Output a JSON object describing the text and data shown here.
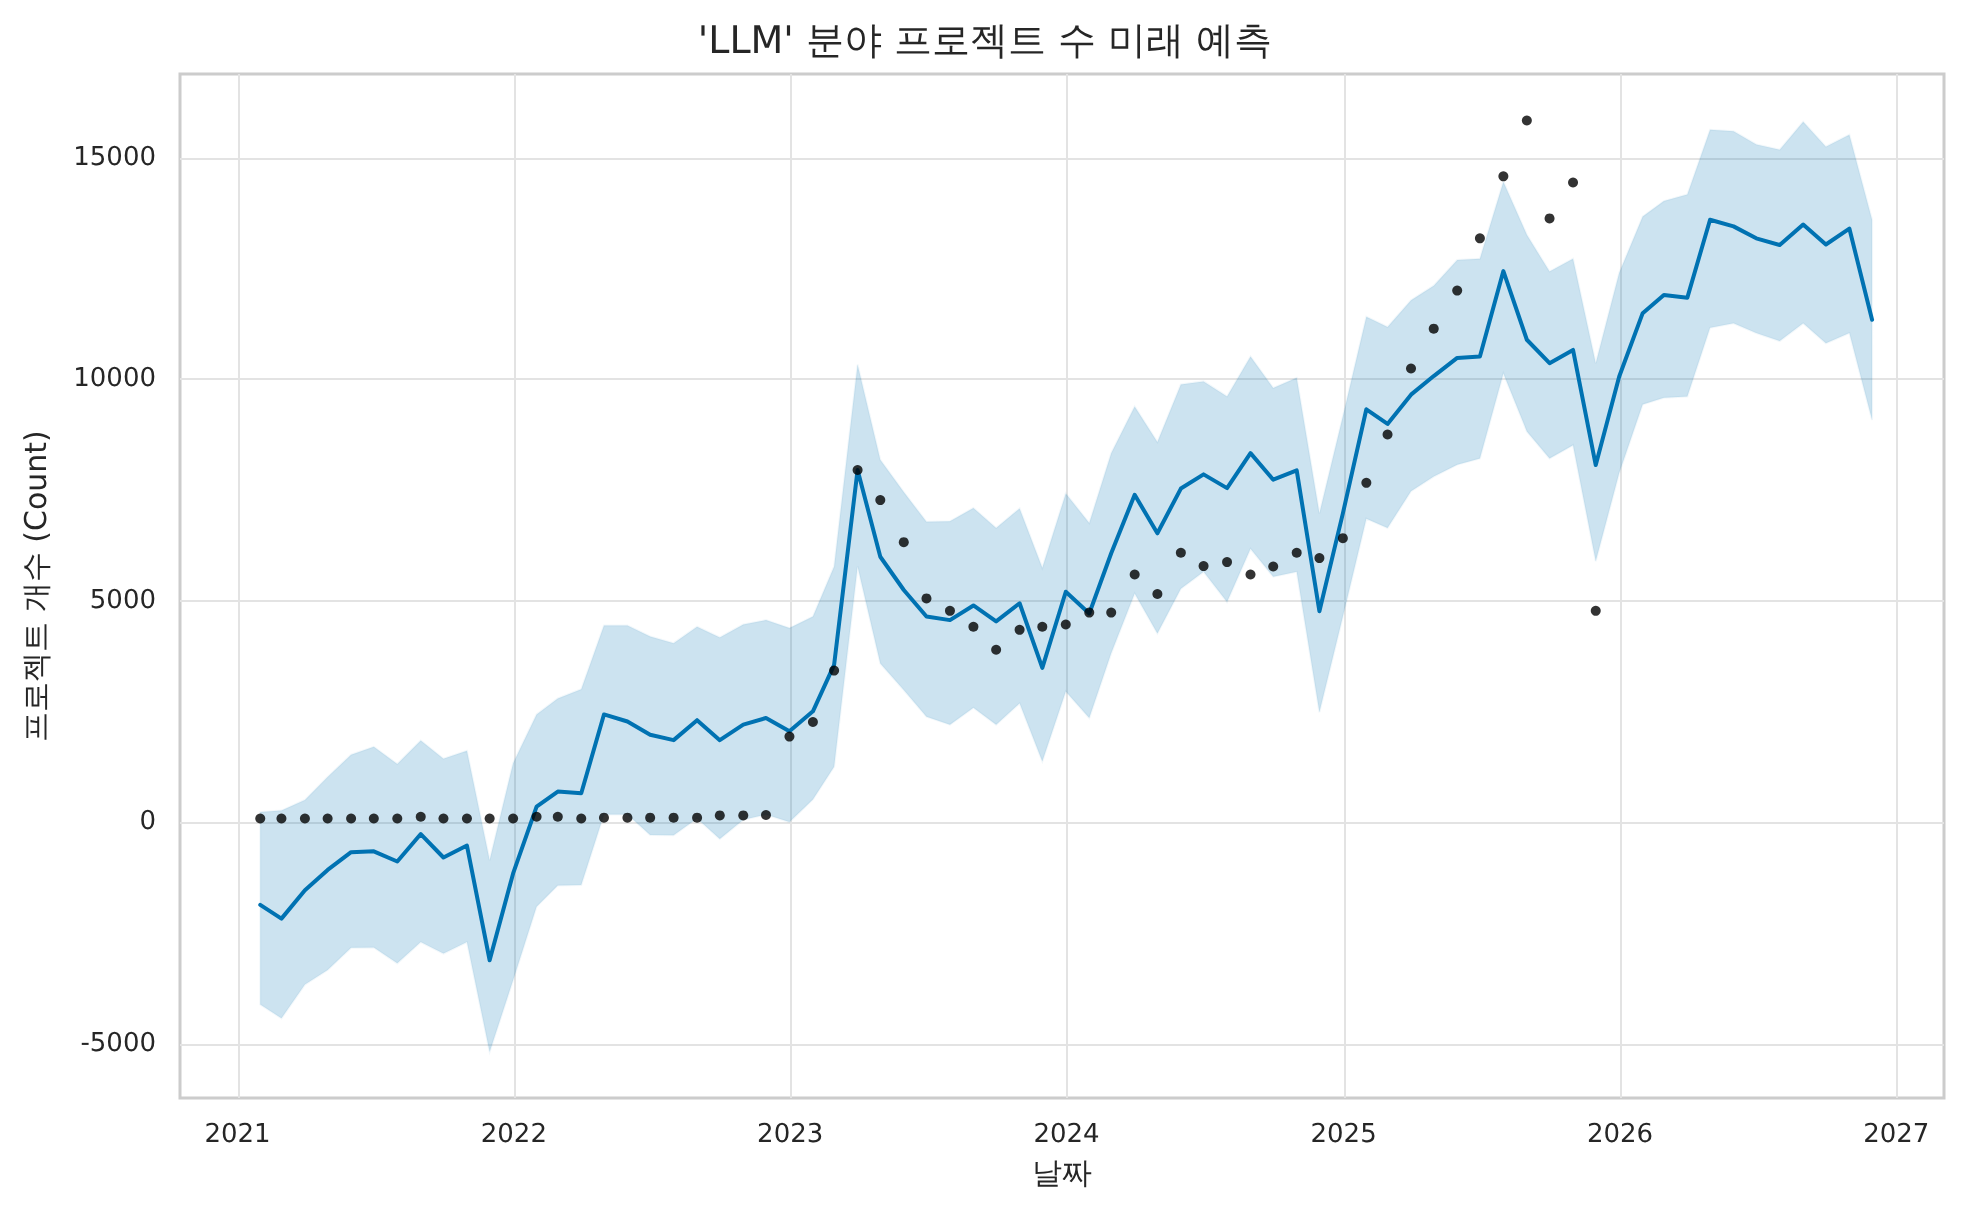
{
  "chart_data": {
    "type": "line",
    "title": "'LLM' 분야 프로젝트 수 미래 예측",
    "xlabel": "날짜",
    "ylabel": "프로젝트 개수 (Count)",
    "x": [
      "2021-01-31",
      "2021-02-28",
      "2021-03-31",
      "2021-04-30",
      "2021-05-31",
      "2021-06-30",
      "2021-07-31",
      "2021-08-31",
      "2021-09-30",
      "2021-10-31",
      "2021-11-30",
      "2021-12-31",
      "2022-01-31",
      "2022-02-28",
      "2022-03-31",
      "2022-04-30",
      "2022-05-31",
      "2022-06-30",
      "2022-07-31",
      "2022-08-31",
      "2022-09-30",
      "2022-10-31",
      "2022-11-30",
      "2022-12-31",
      "2023-01-31",
      "2023-02-28",
      "2023-03-31",
      "2023-04-30",
      "2023-05-31",
      "2023-06-30",
      "2023-07-31",
      "2023-08-31",
      "2023-09-30",
      "2023-10-31",
      "2023-11-30",
      "2023-12-31",
      "2024-01-31",
      "2024-02-29",
      "2024-03-31",
      "2024-04-30",
      "2024-05-31",
      "2024-06-30",
      "2024-07-31",
      "2024-08-31",
      "2024-09-30",
      "2024-10-31",
      "2024-11-30",
      "2024-12-31",
      "2025-01-31",
      "2025-02-28",
      "2025-03-31",
      "2025-04-30",
      "2025-05-31",
      "2025-06-30",
      "2025-07-31",
      "2025-08-31",
      "2025-09-30",
      "2025-10-31",
      "2025-11-30",
      "2025-12-31",
      "2026-01-31",
      "2026-02-28",
      "2026-03-31",
      "2026-04-30",
      "2026-05-31",
      "2026-06-30",
      "2026-07-31",
      "2026-08-31",
      "2026-09-30",
      "2026-10-31",
      "2026-11-30"
    ],
    "series": [
      {
        "color": "#0072b2",
        "marker": "none",
        "line_style": "solid",
        "values": [
          -1870,
          -2180,
          -1540,
          -1080,
          -680,
          -660,
          -890,
          -270,
          -800,
          -530,
          -3120,
          -1160,
          350,
          690,
          650,
          2430,
          2270,
          1970,
          1850,
          2300,
          1850,
          2200,
          2350,
          2050,
          2500,
          3550,
          7950,
          5990,
          5240,
          4640,
          4560,
          4890,
          4530,
          4940,
          3480,
          5200,
          4710,
          6070,
          7390,
          6520,
          7530,
          7850,
          7540,
          8330,
          7730,
          7940,
          4760,
          6970,
          9320,
          8990,
          9650,
          10070,
          10480,
          10510,
          12440,
          10890,
          10360,
          10660,
          8060,
          10060,
          11490,
          11900,
          11840,
          13600,
          13450,
          13180,
          13030,
          13490,
          13040,
          13400,
          11340
        ],
        "upper": [
          230,
          260,
          500,
          1020,
          1520,
          1700,
          1310,
          1840,
          1430,
          1610,
          -860,
          1330,
          2430,
          2790,
          3000,
          4440,
          4440,
          4190,
          4040,
          4410,
          4170,
          4460,
          4560,
          4380,
          4640,
          5770,
          10330,
          8180,
          7450,
          6780,
          6790,
          7090,
          6640,
          7080,
          5740,
          7420,
          6750,
          8330,
          9380,
          8580,
          9880,
          9950,
          9610,
          10510,
          9800,
          10030,
          6970,
          9160,
          11410,
          11180,
          11780,
          12110,
          12690,
          12720,
          14460,
          13260,
          12430,
          12720,
          10360,
          12400,
          13670,
          14020,
          14170,
          15630,
          15600,
          15300,
          15180,
          15810,
          15250,
          15520,
          13600
        ],
        "lower": [
          -4120,
          -4430,
          -3670,
          -3340,
          -2840,
          -2830,
          -3190,
          -2710,
          -2970,
          -2710,
          -5190,
          -3570,
          -1910,
          -1430,
          -1420,
          170,
          170,
          -290,
          -300,
          80,
          -380,
          50,
          170,
          0,
          510,
          1250,
          5770,
          3580,
          2980,
          2380,
          2200,
          2580,
          2200,
          2680,
          1370,
          2950,
          2350,
          3810,
          5160,
          4260,
          5270,
          5650,
          4970,
          6170,
          5540,
          5650,
          2480,
          4640,
          6850,
          6640,
          7470,
          7800,
          8070,
          8210,
          10130,
          8820,
          8210,
          8510,
          5890,
          7880,
          9430,
          9580,
          9610,
          11160,
          11260,
          11040,
          10860,
          11260,
          10810,
          11040,
          9080
        ]
      },
      {
        "type": "scatter",
        "color": "#000000",
        "marker": "circle",
        "x": [
          "2021-01-31",
          "2021-02-28",
          "2021-03-31",
          "2021-04-30",
          "2021-05-31",
          "2021-06-30",
          "2021-07-31",
          "2021-08-31",
          "2021-09-30",
          "2021-10-31",
          "2021-11-30",
          "2021-12-31",
          "2022-01-31",
          "2022-02-28",
          "2022-03-31",
          "2022-04-30",
          "2022-05-31",
          "2022-06-30",
          "2022-07-31",
          "2022-08-31",
          "2022-09-30",
          "2022-10-31",
          "2022-11-30",
          "2022-12-31",
          "2023-01-31",
          "2023-02-28",
          "2023-03-31",
          "2023-04-30",
          "2023-05-31",
          "2023-06-30",
          "2023-07-31",
          "2023-08-31",
          "2023-09-30",
          "2023-10-31",
          "2023-11-30",
          "2023-12-31",
          "2024-01-31",
          "2024-02-29",
          "2024-03-31",
          "2024-04-30",
          "2024-05-31",
          "2024-06-30",
          "2024-07-31",
          "2024-08-31",
          "2024-09-30",
          "2024-10-31",
          "2024-11-30",
          "2024-12-31",
          "2025-01-31",
          "2025-02-28",
          "2025-03-31",
          "2025-04-30",
          "2025-05-31",
          "2025-06-30",
          "2025-07-31",
          "2025-08-31",
          "2025-09-30",
          "2025-10-31",
          "2025-11-30"
        ],
        "values": [
          80,
          80,
          80,
          80,
          80,
          80,
          80,
          120,
          80,
          80,
          80,
          80,
          120,
          120,
          80,
          100,
          100,
          100,
          100,
          100,
          150,
          150,
          160,
          1930,
          2260,
          3420,
          7950,
          7270,
          6320,
          5050,
          4770,
          4410,
          3890,
          4340,
          4410,
          4460,
          4730,
          4730,
          5590,
          5150,
          6080,
          5780,
          5870,
          5590,
          5770,
          6080,
          5960,
          6410,
          7660,
          8750,
          10240,
          11140,
          12000,
          13180,
          14580,
          15840,
          13630,
          14440,
          4770
        ]
      }
    ],
    "xlim": [
      "2020-10-17",
      "2027-03-05"
    ],
    "xticks": [
      "2021",
      "2022",
      "2023",
      "2024",
      "2025",
      "2026",
      "2027"
    ],
    "ylim": [
      -6230,
      16890
    ],
    "yticks": [
      -5000,
      0,
      5000,
      10000,
      15000
    ],
    "grid": true
  }
}
